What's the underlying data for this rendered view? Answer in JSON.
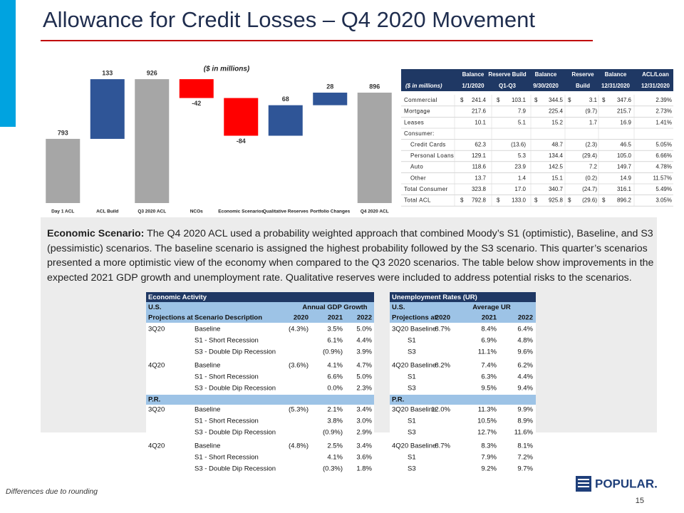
{
  "title": "Allowance for Credit Losses – Q4 2020 Movement",
  "chart_data": {
    "type": "waterfall",
    "subtitle": "($ in millions)",
    "categories": [
      "Day 1 ACL",
      "ACL Build",
      "Q3 2020 ACL",
      "NCOs",
      "Economic Scenarios",
      "Qualitative Reserves",
      "Portfolio Changes",
      "Q4 2020 ACL"
    ],
    "series": [
      {
        "color": "#a6a6a6",
        "values": [
          793,
          null,
          926,
          null,
          null,
          null,
          null,
          896
        ]
      },
      {
        "color": "#2f5597",
        "values": [
          null,
          133,
          null,
          null,
          null,
          68,
          28,
          null
        ]
      },
      {
        "color": "#ff0000",
        "values": [
          null,
          null,
          null,
          -42,
          -84,
          null,
          null,
          null
        ]
      }
    ],
    "ylim": [
      650,
      950
    ]
  },
  "acl_table": {
    "stub_header": "($ in millions)",
    "columns": [
      [
        "Balance",
        "1/1/2020"
      ],
      [
        "Reserve Build",
        "Q1-Q3"
      ],
      [
        "Balance",
        "9/30/2020"
      ],
      [
        "Reserve",
        "Build"
      ],
      [
        "Balance",
        "12/31/2020"
      ],
      [
        "ACL/Loan",
        "12/31/2020"
      ]
    ],
    "rows": [
      {
        "label": "Commercial",
        "currency": "$",
        "values": [
          "241.4",
          "103.1",
          "344.5",
          "3.1",
          "347.6",
          "2.39%"
        ]
      },
      {
        "label": "Mortgage",
        "values": [
          "217.6",
          "7.9",
          "225.4",
          "(9.7)",
          "215.7",
          "2.73%"
        ]
      },
      {
        "label": "Leases",
        "values": [
          "10.1",
          "5.1",
          "15.2",
          "1.7",
          "16.9",
          "1.41%"
        ]
      },
      {
        "label": "Consumer:"
      },
      {
        "label": "Credit Cards",
        "indent": true,
        "values": [
          "62.3",
          "(13.6)",
          "48.7",
          "(2.3)",
          "46.5",
          "5.05%"
        ]
      },
      {
        "label": "Personal Loans",
        "indent": true,
        "values": [
          "129.1",
          "5.3",
          "134.4",
          "(29.4)",
          "105.0",
          "6.66%"
        ]
      },
      {
        "label": "Auto",
        "indent": true,
        "values": [
          "118.6",
          "23.9",
          "142.5",
          "7.2",
          "149.7",
          "4.78%"
        ]
      },
      {
        "label": "Other",
        "indent": true,
        "values": [
          "13.7",
          "1.4",
          "15.1",
          "(0.2)",
          "14.9",
          "11.57%"
        ]
      },
      {
        "label": "Total Consumer",
        "values": [
          "323.8",
          "17.0",
          "340.7",
          "(24.7)",
          "316.1",
          "5.49%"
        ]
      },
      {
        "label": "Total ACL",
        "currency": "$",
        "values": [
          "792.8",
          "133.0",
          "925.8",
          "(29.6)",
          "896.2",
          "3.05%"
        ]
      }
    ]
  },
  "paragraph": {
    "lead": "Economic Scenario:",
    "text": "The Q4 2020 ACL used a probability weighted approach that combined Moody’s S1 (optimistic), Baseline, and S3 (pessimistic) scenarios. The baseline scenario is assigned the highest probability followed by the S3 scenario. This quarter’s scenarios presented a more optimistic view of the economy when compared to the Q3 2020 scenarios. The table below show improvements in the expected 2021 GDP growth and unemployment rate. Qualitative reserves were included to address potential risks to the scenarios."
  },
  "scenario_tables": [
    {
      "title": "Economic Activity",
      "group_title": "Annual GDP Growth",
      "columns": [
        "Projections at",
        "Scenario Description",
        "2020",
        "2021",
        "2022"
      ],
      "sections": [
        {
          "name": "U.S.",
          "groups": [
            [
              [
                "3Q20",
                "Baseline",
                "(4.3%)",
                "3.5%",
                "5.0%"
              ],
              [
                null,
                "S1 - Short Recession",
                null,
                "6.1%",
                "4.4%"
              ],
              [
                null,
                "S3 - Double Dip Recession",
                null,
                "(0.9%)",
                "3.9%"
              ]
            ],
            [
              [
                "4Q20",
                "Baseline",
                "(3.6%)",
                "4.1%",
                "4.7%"
              ],
              [
                null,
                "S1 - Short Recession",
                null,
                "6.6%",
                "5.0%"
              ],
              [
                null,
                "S3 - Double Dip Recession",
                null,
                "0.0%",
                "2.3%"
              ]
            ]
          ]
        },
        {
          "name": "P.R.",
          "groups": [
            [
              [
                "3Q20",
                "Baseline",
                "(5.3%)",
                "2.1%",
                "3.4%"
              ],
              [
                null,
                "S1 - Short Recession",
                null,
                "3.8%",
                "3.0%"
              ],
              [
                null,
                "S3 - Double Dip Recession",
                null,
                "(0.9%)",
                "2.9%"
              ]
            ],
            [
              [
                "4Q20",
                "Baseline",
                "(4.8%)",
                "2.5%",
                "3.4%"
              ],
              [
                null,
                "S1 - Short Recession",
                null,
                "4.1%",
                "3.6%"
              ],
              [
                null,
                "S3 - Double Dip Recession",
                null,
                "(0.3%)",
                "1.8%"
              ]
            ]
          ]
        }
      ]
    },
    {
      "title": "Unemployment Rates (UR)",
      "group_title": "Average UR",
      "columns": [
        "Projections at:",
        "2020",
        "2021",
        "2022"
      ],
      "sections": [
        {
          "name": "U.S.",
          "groups": [
            [
              [
                "3Q20 Baseline",
                "8.7%",
                "8.4%",
                "6.4%"
              ],
              [
                "S1",
                null,
                "6.9%",
                "4.8%"
              ],
              [
                "S3",
                null,
                "11.1%",
                "9.6%"
              ]
            ],
            [
              [
                "4Q20 Baseline",
                "8.2%",
                "7.4%",
                "6.2%"
              ],
              [
                "S1",
                null,
                "6.3%",
                "4.4%"
              ],
              [
                "S3",
                null,
                "9.5%",
                "9.4%"
              ]
            ]
          ]
        },
        {
          "name": "P.R.",
          "groups": [
            [
              [
                "3Q20 Baseline",
                "12.0%",
                "11.3%",
                "9.9%"
              ],
              [
                "S1",
                null,
                "10.5%",
                "8.9%"
              ],
              [
                "S3",
                null,
                "12.7%",
                "11.6%"
              ]
            ],
            [
              [
                "4Q20 Baseline",
                "8.7%",
                "8.3%",
                "8.1%"
              ],
              [
                "S1",
                null,
                "7.9%",
                "7.2%"
              ],
              [
                "S3",
                null,
                "9.2%",
                "9.7%"
              ]
            ]
          ]
        }
      ]
    }
  ],
  "footnote": "Differences due to rounding",
  "logo": "POPULAR.",
  "page_number": "15"
}
